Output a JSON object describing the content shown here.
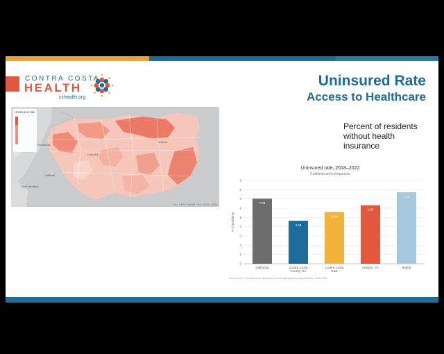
{
  "logo": {
    "line1": "CONTRA COSTA",
    "line2": "HEALTH",
    "url": "cchealth.org"
  },
  "header": {
    "title": "Uninsured Rate",
    "subtitle": "Access to Healthcare"
  },
  "description": "Percent of residents without health insurance",
  "map": {
    "legend_title": "Uninsured rate",
    "labels": [
      "Richmond",
      "Concord",
      "Antioch",
      "San Francisco",
      "Oakland"
    ],
    "credit": "Esri, HERE, Garmin, FAO, NOAA, USGS"
  },
  "colors": {
    "gray": "#6d6d6d",
    "blue": "#1d6b99",
    "yellow": "#f2b33d",
    "orange": "#e2583e",
    "lightblue": "#a5c8dc"
  },
  "chart_data": {
    "type": "bar",
    "title": "Uninsured rate, 2018–2022",
    "subtitle": "California and comparison",
    "ylabel": "% of residents",
    "ylim": [
      0,
      9
    ],
    "yticks": [
      0,
      1,
      2,
      3,
      4,
      5,
      6,
      7,
      8,
      9
    ],
    "categories": [
      "California",
      "Contra Costa County, CA",
      "Contra Costa East",
      "Antioch, CA",
      "94509"
    ],
    "values": [
      7.04,
      4.65,
      5.6,
      6.32,
      7.73
    ],
    "value_labels": [
      "7.04",
      "4.65",
      "5.60",
      "6.32",
      "7.73"
    ],
    "bar_colors": [
      "#6d6d6d",
      "#1d6b99",
      "#f2b33d",
      "#e2583e",
      "#a5c8dc"
    ],
    "grid": true,
    "source_note": "Source: U.S. Census Bureau, American Community Survey 5-year estimates, 2018–2022"
  }
}
